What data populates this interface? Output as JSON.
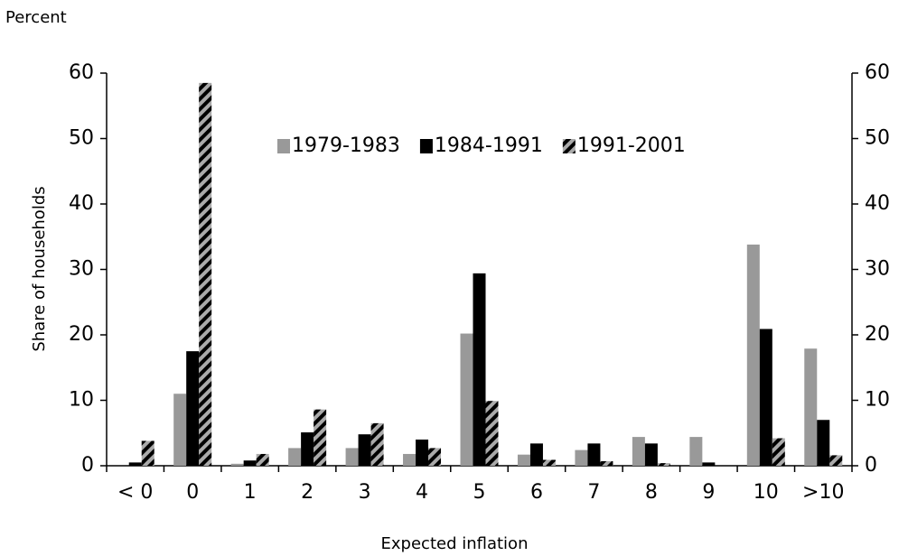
{
  "chart_data": {
    "type": "bar",
    "top_label": "Percent",
    "x_label": "Expected inflation",
    "y_label": "Share of households",
    "categories": [
      "< 0",
      "0",
      "1",
      "2",
      "3",
      "4",
      "5",
      "6",
      "7",
      "8",
      "9",
      "10",
      ">10"
    ],
    "series": [
      {
        "name": "1979-1983",
        "color": "#999999",
        "values": [
          0,
          11,
          0.3,
          2.7,
          2.7,
          1.8,
          20.2,
          1.7,
          2.4,
          4.4,
          4.4,
          33.8,
          17.9
        ]
      },
      {
        "name": "1984-1991",
        "color": "#000000",
        "values": [
          0.5,
          17.5,
          0.8,
          5.1,
          4.8,
          4,
          29.4,
          3.4,
          3.4,
          3.4,
          0.5,
          20.9,
          7
        ]
      },
      {
        "name": "1991-2001",
        "color": "#000000",
        "pattern": "hatch",
        "values": [
          3.8,
          58.5,
          1.8,
          8.6,
          6.5,
          2.7,
          9.9,
          0.9,
          0.7,
          0.4,
          0,
          4.2,
          1.6
        ]
      }
    ],
    "ylim": [
      0,
      60
    ],
    "yticks": [
      0,
      10,
      20,
      30,
      40,
      50,
      60
    ],
    "y2lim": [
      0,
      60
    ],
    "y2ticks": [
      0,
      10,
      20,
      30,
      40,
      50,
      60
    ],
    "grid": false,
    "legend": "top"
  }
}
